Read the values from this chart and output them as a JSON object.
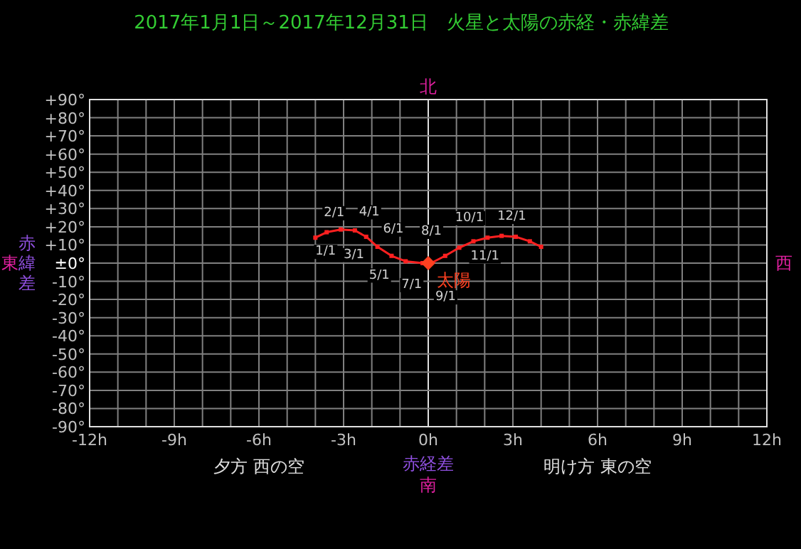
{
  "chart_data": {
    "type": "line",
    "title": "2017年1月1日～2017年12月31日　火星と太陽の赤経・赤緯差",
    "xlabel": "赤経差",
    "ylabel": "赤緯差",
    "xlim": [
      -12,
      12
    ],
    "ylim": [
      -90,
      90
    ],
    "xticks": [
      {
        "value": -12,
        "label": "-12h"
      },
      {
        "value": -11,
        "label": null
      },
      {
        "value": -10,
        "label": null
      },
      {
        "value": -9,
        "label": "-9h"
      },
      {
        "value": -8,
        "label": null
      },
      {
        "value": -7,
        "label": null
      },
      {
        "value": -6,
        "label": "-6h"
      },
      {
        "value": -5,
        "label": null
      },
      {
        "value": -4,
        "label": null
      },
      {
        "value": -3,
        "label": "-3h"
      },
      {
        "value": -2,
        "label": null
      },
      {
        "value": -1,
        "label": null
      },
      {
        "value": 0,
        "label": "0h"
      },
      {
        "value": 1,
        "label": null
      },
      {
        "value": 2,
        "label": null
      },
      {
        "value": 3,
        "label": "3h"
      },
      {
        "value": 4,
        "label": null
      },
      {
        "value": 5,
        "label": null
      },
      {
        "value": 6,
        "label": "6h"
      },
      {
        "value": 7,
        "label": null
      },
      {
        "value": 8,
        "label": null
      },
      {
        "value": 9,
        "label": "9h"
      },
      {
        "value": 10,
        "label": null
      },
      {
        "value": 11,
        "label": null
      },
      {
        "value": 12,
        "label": "12h"
      }
    ],
    "yticks": [
      {
        "value": 90,
        "label": "+90°"
      },
      {
        "value": 80,
        "label": "+80°"
      },
      {
        "value": 70,
        "label": "+70°"
      },
      {
        "value": 60,
        "label": "+60°"
      },
      {
        "value": 50,
        "label": "+50°"
      },
      {
        "value": 40,
        "label": "+40°"
      },
      {
        "value": 30,
        "label": "+30°"
      },
      {
        "value": 20,
        "label": "+20°"
      },
      {
        "value": 10,
        "label": "+10°"
      },
      {
        "value": 0,
        "label": "±0°"
      },
      {
        "value": -10,
        "label": "-10°"
      },
      {
        "value": -20,
        "label": "-20°"
      },
      {
        "value": -30,
        "label": "-30°"
      },
      {
        "value": -40,
        "label": "-40°"
      },
      {
        "value": -50,
        "label": "-50°"
      },
      {
        "value": -60,
        "label": "-60°"
      },
      {
        "value": -70,
        "label": "-70°"
      },
      {
        "value": -80,
        "label": "-80°"
      },
      {
        "value": -90,
        "label": "-90°"
      }
    ],
    "grid": true,
    "marker": "square",
    "series": [
      {
        "color": "#ff2020",
        "x": [
          -4.0,
          -3.6,
          -3.1,
          -2.6,
          -2.2,
          -1.8,
          -1.3,
          -0.8,
          -0.2,
          0.1,
          0.6,
          1.1,
          1.6,
          2.1,
          2.6,
          3.1,
          3.6,
          4.0
        ],
        "values": [
          14,
          17,
          18.5,
          18,
          14.5,
          9,
          4,
          1,
          0,
          0,
          4,
          8.5,
          12,
          14,
          15,
          14.5,
          12,
          9
        ]
      },
      {
        "name": "太陽",
        "type": "scatter",
        "marker": "diamond",
        "color": "#ff4020",
        "x": [
          0
        ],
        "values": [
          0
        ]
      }
    ],
    "annotations": [
      "北",
      "南",
      "西",
      "東",
      "夕方 西の空",
      "明け方 東の空",
      {
        "text": "1/1",
        "x": -4.0,
        "y": 14
      },
      {
        "text": "2/1",
        "x": -3.7,
        "y": 16.5
      },
      {
        "text": "3/1",
        "x": -3.0,
        "y": 18.5
      },
      {
        "text": "4/1",
        "x": -2.45,
        "y": 17
      },
      {
        "text": "5/1",
        "x": -2.1,
        "y": 13.5
      },
      {
        "text": "6/1",
        "x": -1.6,
        "y": 7.5
      },
      {
        "text": "7/1",
        "x": -0.95,
        "y": 2
      },
      {
        "text": "8/1",
        "x": -0.25,
        "y": 0
      },
      {
        "text": "9/1",
        "x": 0.25,
        "y": 1.5
      },
      {
        "text": "10/1",
        "x": 0.95,
        "y": 7.5
      },
      {
        "text": "11/1",
        "x": 1.5,
        "y": 11.5
      },
      {
        "text": "12/1",
        "x": 2.45,
        "y": 14.5
      }
    ]
  }
}
